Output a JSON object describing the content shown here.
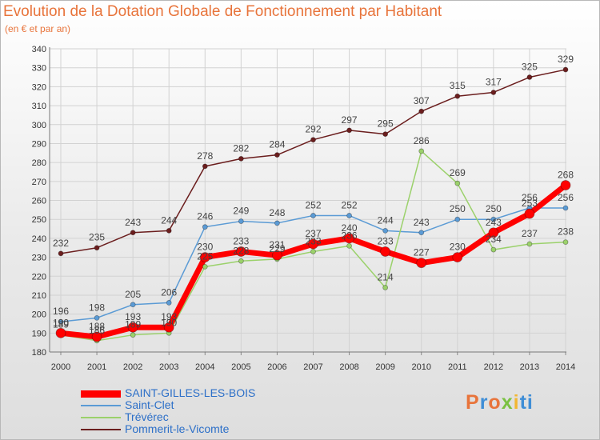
{
  "title": "Evolution de la Dotation Globale de Fonctionnement par Habitant",
  "subtitle": "(en € et par an)",
  "logo": "Proxiti",
  "logo_letters": [
    "P",
    "r",
    "o",
    "x",
    "i",
    "ti"
  ],
  "chart_data": {
    "type": "line",
    "title": "Evolution de la Dotation Globale de Fonctionnement par Habitant",
    "subtitle": "(en € et par an)",
    "x": [
      "2000",
      "2001",
      "2002",
      "2003",
      "2004",
      "2005",
      "2006",
      "2007",
      "2008",
      "2009",
      "2010",
      "2011",
      "2012",
      "2013",
      "2014"
    ],
    "y_ticks": [
      "180",
      "190",
      "200",
      "210",
      "220",
      "230",
      "240",
      "250",
      "260",
      "270",
      "280",
      "290",
      "300",
      "310",
      "320",
      "330",
      "340"
    ],
    "ylim": [
      180,
      340
    ],
    "grid": true,
    "legend_position": "bottom-left",
    "series": [
      {
        "name": "Pommerit-le-Vicomte",
        "color": "#6b1e1e",
        "values": [
          232,
          235,
          243,
          244,
          278,
          282,
          284,
          292,
          297,
          295,
          307,
          315,
          317,
          325,
          329
        ]
      },
      {
        "name": "Saint-Clet",
        "color": "#5b9bd5",
        "values": [
          196,
          198,
          205,
          206,
          246,
          249,
          248,
          252,
          252,
          244,
          243,
          250,
          250,
          256,
          256
        ]
      },
      {
        "name": "Trévérec",
        "color": "#9bd16b",
        "values": [
          189,
          186,
          189,
          190,
          225,
          228,
          229,
          233,
          236,
          214,
          286,
          269,
          234,
          237,
          238
        ]
      },
      {
        "name": "SAINT-GILLES-LES-BOIS",
        "color": "#ff0000",
        "values": [
          190,
          188,
          193,
          193,
          230,
          233,
          231,
          237,
          240,
          233,
          227,
          230,
          243,
          253,
          268
        ]
      }
    ]
  },
  "legend": [
    {
      "name": "SAINT-GILLES-LES-BOIS",
      "color": "#ff0000"
    },
    {
      "name": "Saint-Clet",
      "color": "#5b9bd5"
    },
    {
      "name": "Trévérec",
      "color": "#9bd16b"
    },
    {
      "name": "Pommerit-le-Vicomte",
      "color": "#6b1e1e"
    }
  ]
}
